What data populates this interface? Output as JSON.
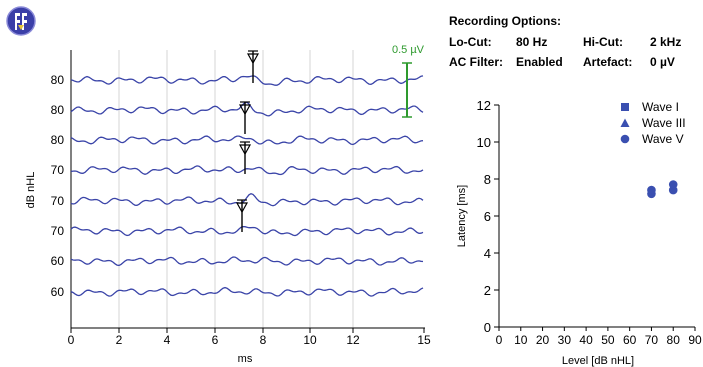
{
  "app": {
    "icon": "app-logo-icon"
  },
  "recording_options": {
    "title": "Recording Options:",
    "lo_cut_label": "Lo-Cut:",
    "lo_cut_value": "80 Hz",
    "hi_cut_label": "Hi-Cut:",
    "hi_cut_value": "2 kHz",
    "ac_filter_label": "AC Filter:",
    "ac_filter_value": "Enabled",
    "artefact_label": "Artefact:",
    "artefact_value": "0 µV"
  },
  "waveform_plot": {
    "ylabel": "dB nHL",
    "xlabel": "ms",
    "x_ticks": [
      "0",
      "2",
      "4",
      "6",
      "8",
      "10",
      "12",
      "15"
    ],
    "trace_levels": [
      "80",
      "80",
      "80",
      "70",
      "70",
      "70",
      "60",
      "60"
    ],
    "scale_bar_label": "0.5 µV",
    "trace_color": "#3a44a8",
    "scale_bar_color": "#2e9a2e",
    "marker_label": "V"
  },
  "chart_data": {
    "type": "scatter",
    "xlabel": "Level [dB nHL]",
    "ylabel": "Latency [ms]",
    "xlim": [
      0,
      90
    ],
    "ylim": [
      0,
      12
    ],
    "x_ticks": [
      "0",
      "10",
      "20",
      "30",
      "40",
      "50",
      "60",
      "70",
      "80",
      "90"
    ],
    "y_ticks": [
      "0",
      "2",
      "4",
      "6",
      "8",
      "10",
      "12"
    ],
    "grid": false,
    "legend_position": "top-right",
    "series": [
      {
        "name": "Wave I",
        "marker": "square",
        "color": "#3a4fb0",
        "points": []
      },
      {
        "name": "Wave III",
        "marker": "triangle",
        "color": "#3a4fb0",
        "points": []
      },
      {
        "name": "Wave V",
        "marker": "circle",
        "color": "#3a4fb0",
        "points": [
          [
            70,
            7.2
          ],
          [
            70,
            7.4
          ],
          [
            80,
            7.4
          ],
          [
            80,
            7.7
          ]
        ]
      }
    ]
  }
}
